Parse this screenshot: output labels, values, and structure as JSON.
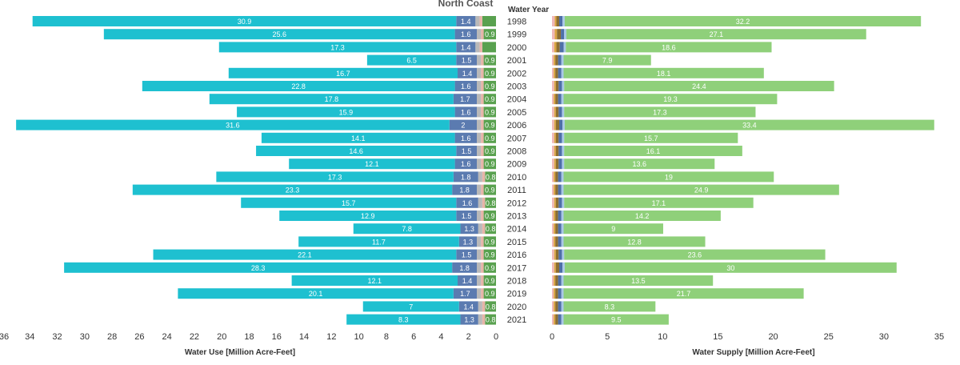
{
  "chart_data": {
    "type": "bar",
    "title": "North Coast",
    "category_header": "Water Year",
    "categories": [
      "1998",
      "1999",
      "2000",
      "2001",
      "2002",
      "2003",
      "2004",
      "2005",
      "2006",
      "2007",
      "2008",
      "2009",
      "2010",
      "2011",
      "2012",
      "2013",
      "2014",
      "2015",
      "2016",
      "2017",
      "2018",
      "2019",
      "2020",
      "2021"
    ],
    "water_use": {
      "xlabel": "Water Use [Million Acre-Feet]",
      "xlim": [
        0,
        36
      ],
      "ticks": [
        0,
        2,
        4,
        6,
        8,
        10,
        12,
        14,
        16,
        18,
        20,
        22,
        24,
        26,
        28,
        30,
        32,
        34,
        36
      ],
      "series": [
        {
          "values": [
            1.0,
            0.9,
            1.0,
            0.9,
            0.9,
            0.9,
            0.9,
            0.9,
            0.9,
            0.9,
            0.9,
            0.9,
            0.8,
            0.9,
            0.8,
            0.9,
            0.8,
            0.9,
            0.9,
            0.9,
            0.9,
            0.9,
            0.8,
            0.8
          ],
          "color": "#59a14f"
        },
        {
          "values": [
            0.2,
            0.2,
            0.2,
            0.2,
            0.2,
            0.2,
            0.2,
            0.2,
            0.2,
            0.2,
            0.2,
            0.2,
            0.2,
            0.2,
            0.2,
            0.2,
            0.2,
            0.2,
            0.2,
            0.2,
            0.2,
            0.2,
            0.2,
            0.2
          ],
          "color": "#e8b4a8"
        },
        {
          "values": [
            0.3,
            0.3,
            0.3,
            0.3,
            0.3,
            0.3,
            0.3,
            0.3,
            0.3,
            0.3,
            0.3,
            0.3,
            0.3,
            0.3,
            0.3,
            0.3,
            0.3,
            0.3,
            0.3,
            0.3,
            0.3,
            0.3,
            0.3,
            0.3
          ],
          "color": "#b9b9b9"
        },
        {
          "values": [
            1.4,
            1.6,
            1.4,
            1.5,
            1.4,
            1.6,
            1.7,
            1.6,
            2,
            1.6,
            1.5,
            1.6,
            1.8,
            1.8,
            1.6,
            1.5,
            1.3,
            1.3,
            1.5,
            1.8,
            1.4,
            1.7,
            1.4,
            1.3
          ],
          "color": "#5b7bb0"
        },
        {
          "values": [
            30.9,
            25.6,
            17.3,
            6.5,
            16.7,
            22.8,
            17.8,
            15.9,
            31.6,
            14.1,
            14.6,
            12.1,
            17.3,
            23.3,
            15.7,
            12.9,
            7.8,
            11.7,
            22.1,
            28.3,
            12.1,
            20.1,
            7,
            8.3
          ],
          "color": "#1ec0d0"
        }
      ],
      "labeled_series_indices": [
        0,
        3,
        4
      ],
      "hidden_label_values": [
        1.0
      ]
    },
    "water_supply": {
      "xlabel": "Water Supply [Million Acre-Feet]",
      "xlim": [
        0,
        35
      ],
      "ticks": [
        0,
        5,
        10,
        15,
        20,
        25,
        30,
        35
      ],
      "series": [
        {
          "values": [
            0.25,
            0.25,
            0.2,
            0.15,
            0.15,
            0.2,
            0.15,
            0.2,
            0.2,
            0.2,
            0.2,
            0.2,
            0.15,
            0.15,
            0.2,
            0.15,
            0.15,
            0.15,
            0.2,
            0.2,
            0.15,
            0.15,
            0.15,
            0.15
          ],
          "color": "#f0b8b8"
        },
        {
          "values": [
            0.15,
            0.2,
            0.2,
            0.15,
            0.15,
            0.15,
            0.15,
            0.15,
            0.15,
            0.15,
            0.15,
            0.15,
            0.15,
            0.15,
            0.15,
            0.15,
            0.15,
            0.15,
            0.15,
            0.15,
            0.15,
            0.15,
            0.15,
            0.15
          ],
          "color": "#d9a441"
        },
        {
          "values": [
            0.25,
            0.35,
            0.3,
            0.25,
            0.25,
            0.25,
            0.25,
            0.25,
            0.3,
            0.25,
            0.25,
            0.25,
            0.25,
            0.25,
            0.25,
            0.25,
            0.25,
            0.25,
            0.25,
            0.3,
            0.25,
            0.25,
            0.25,
            0.25
          ],
          "color": "#8c6d31"
        },
        {
          "values": [
            0.3,
            0.3,
            0.35,
            0.3,
            0.3,
            0.3,
            0.3,
            0.3,
            0.3,
            0.3,
            0.3,
            0.3,
            0.3,
            0.3,
            0.3,
            0.3,
            0.3,
            0.3,
            0.3,
            0.3,
            0.3,
            0.3,
            0.3,
            0.3
          ],
          "color": "#4e6fa8"
        },
        {
          "values": [
            0.2,
            0.2,
            0.2,
            0.2,
            0.2,
            0.2,
            0.2,
            0.2,
            0.2,
            0.2,
            0.2,
            0.2,
            0.2,
            0.2,
            0.2,
            0.2,
            0.2,
            0.2,
            0.2,
            0.2,
            0.2,
            0.2,
            0.2,
            0.2
          ],
          "color": "#a9c7e8"
        },
        {
          "values": [
            32.2,
            27.1,
            18.6,
            7.9,
            18.1,
            24.4,
            19.3,
            17.3,
            33.4,
            15.7,
            16.1,
            13.6,
            19,
            24.9,
            17.1,
            14.2,
            9,
            12.8,
            23.6,
            30,
            13.5,
            21.7,
            8.3,
            9.5
          ],
          "color": "#8fd07a"
        }
      ],
      "labeled_series_indices": [
        5
      ]
    }
  }
}
